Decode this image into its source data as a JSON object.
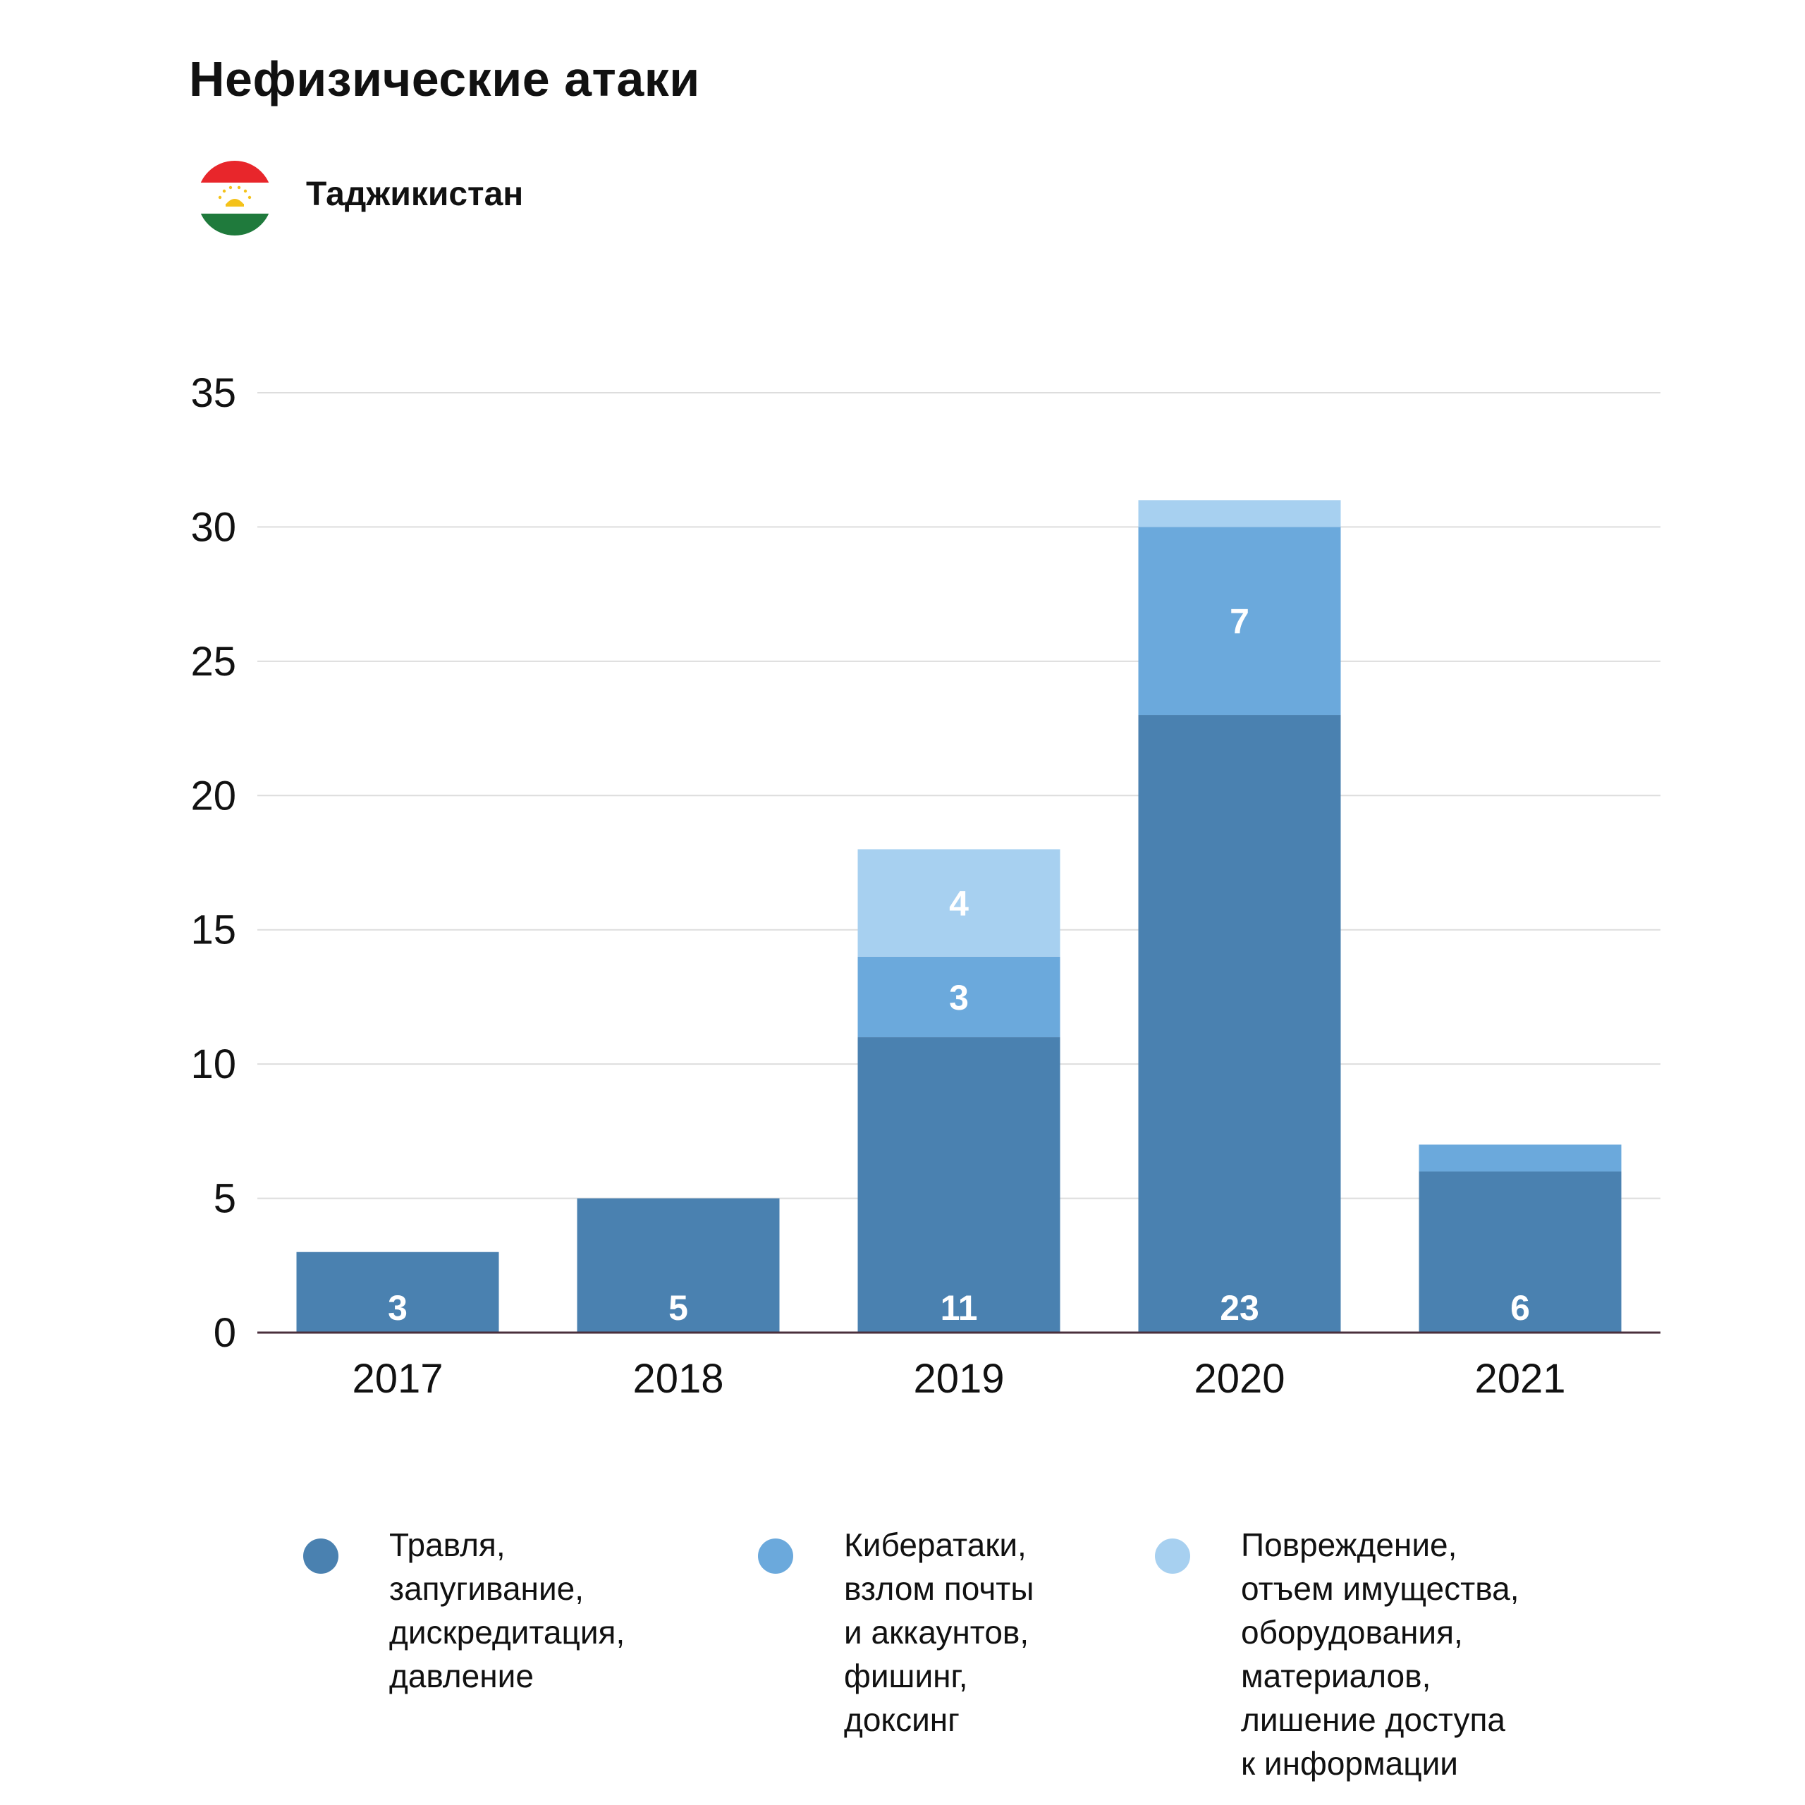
{
  "header": {
    "title": "Нефизические атаки",
    "country": "Таджикистан"
  },
  "colors": {
    "series1": "#4a81b0",
    "series2": "#6ba9dc",
    "series3": "#a7d0f0",
    "grid": "#dddddd",
    "axis": "#4a2f3c"
  },
  "chart_data": {
    "type": "bar",
    "stacked": true,
    "categories": [
      "2017",
      "2018",
      "2019",
      "2020",
      "2021"
    ],
    "series": [
      {
        "name": "Травля, запугивание, дискредитация, давление",
        "values": [
          3,
          5,
          11,
          23,
          6
        ],
        "color": "#4a81b0",
        "labels": [
          "3",
          "5",
          "11",
          "23",
          "6"
        ]
      },
      {
        "name": "Кибератаки, взлом почты и аккаунтов, фишинг, доксинг",
        "values": [
          0,
          0,
          3,
          7,
          1
        ],
        "color": "#6ba9dc",
        "labels": [
          "",
          "",
          "3",
          "7",
          ""
        ]
      },
      {
        "name": "Повреждение, отъем имущества, оборудования, материалов, лишение доступа к информации",
        "values": [
          0,
          0,
          4,
          1,
          0
        ],
        "color": "#a7d0f0",
        "labels": [
          "",
          "",
          "4",
          "",
          ""
        ]
      }
    ],
    "yticks": [
      "0",
      "5",
      "10",
      "15",
      "20",
      "25",
      "30",
      "35"
    ],
    "ylim": [
      0,
      35
    ],
    "grid": true,
    "legend_position": "bottom"
  },
  "legend": [
    {
      "lines": [
        "Травля,",
        "запугивание,",
        "дискредитация,",
        "давление"
      ],
      "color": "#4a81b0"
    },
    {
      "lines": [
        "Кибератаки,",
        "взлом почты",
        "и аккаунтов,",
        "фишинг,",
        "доксинг"
      ],
      "color": "#6ba9dc"
    },
    {
      "lines": [
        "Повреждение,",
        "отъем имущества,",
        "оборудования,",
        "материалов,",
        "лишение доступа",
        "к информации"
      ],
      "color": "#a7d0f0"
    }
  ]
}
